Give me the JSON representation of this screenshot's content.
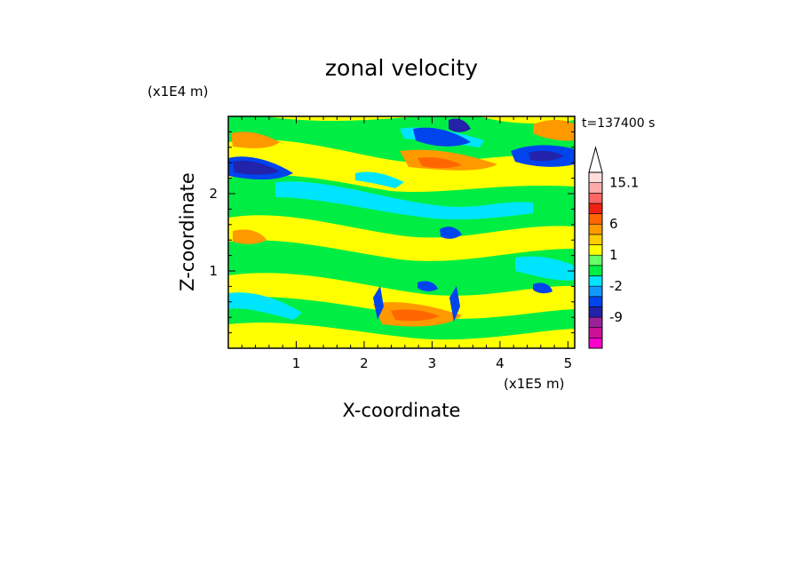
{
  "chart_data": {
    "type": "heatmap",
    "title": "zonal velocity",
    "time_label": "t=137400 s",
    "xlabel": "X-coordinate",
    "ylabel": "Z-coordinate",
    "x_unit_label": "(x1E5 m)",
    "y_unit_label": "(x1E4 m)",
    "x_ticks": [
      "1",
      "2",
      "3",
      "4",
      "5"
    ],
    "y_ticks": [
      "1",
      "2"
    ],
    "xlim": [
      0,
      5.1
    ],
    "ylim": [
      0,
      3.0
    ],
    "colorbar": {
      "tick_labels": [
        "15.1",
        "6",
        "1",
        "-2",
        "-9"
      ],
      "levels": [
        {
          "color": "#ff00cc"
        },
        {
          "color": "#cc1199"
        },
        {
          "color": "#992299"
        },
        {
          "color": "#2222aa"
        },
        {
          "color": "#0044ee"
        },
        {
          "color": "#1199ff"
        },
        {
          "color": "#00e5ff"
        },
        {
          "color": "#00ee44"
        },
        {
          "color": "#66ff66"
        },
        {
          "color": "#ffff00"
        },
        {
          "color": "#ffcc00"
        },
        {
          "color": "#ff9900"
        },
        {
          "color": "#ff6600"
        },
        {
          "color": "#ee2211"
        },
        {
          "color": "#ff6666"
        },
        {
          "color": "#ffaaaa"
        },
        {
          "color": "#ffdddd"
        }
      ]
    }
  }
}
